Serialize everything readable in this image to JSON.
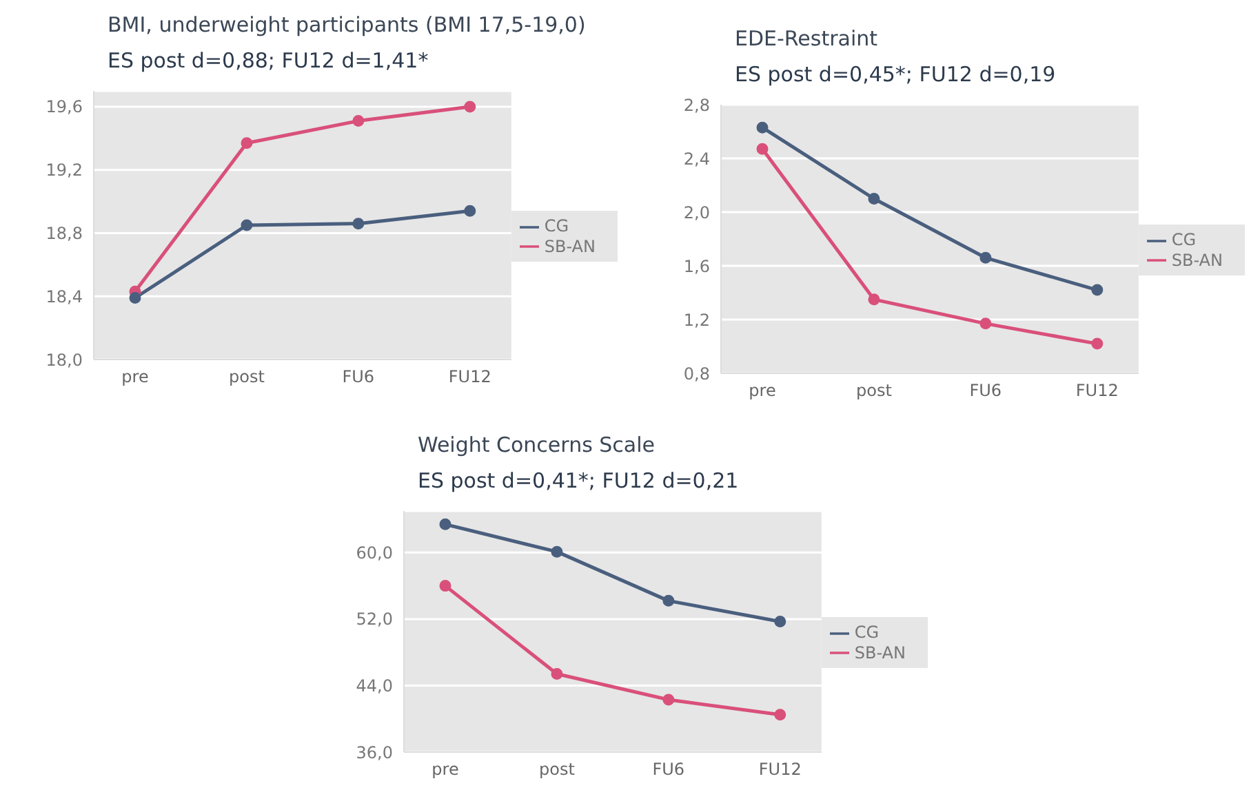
{
  "chart_data": [
    {
      "type": "line",
      "title": "BMI, underweight participants (BMI 17,5-19,0)",
      "subtitle": "ES post d=0,88; FU12 d=1,41*",
      "categories": [
        "pre",
        "post",
        "FU6",
        "FU12"
      ],
      "series": [
        {
          "name": "SB-AN",
          "color": "#d9507a",
          "values": [
            18.43,
            19.37,
            19.51,
            19.6
          ]
        },
        {
          "name": "CG",
          "color": "#4a5f7e",
          "values": [
            18.39,
            18.85,
            18.86,
            18.94
          ]
        }
      ],
      "ylim": [
        18.0,
        19.7
      ],
      "yticks": [
        {
          "value": 18.0,
          "label": "18,0"
        },
        {
          "value": 18.4,
          "label": "18,4"
        },
        {
          "value": 18.8,
          "label": "18,8"
        },
        {
          "value": 19.2,
          "label": "19,2"
        },
        {
          "value": 19.6,
          "label": "19,6"
        }
      ],
      "grid": "y",
      "legend": "right",
      "marker": "circle"
    },
    {
      "type": "line",
      "title": "EDE-Restraint",
      "subtitle": "ES post d=0,45*; FU12 d=0,19",
      "categories": [
        "pre",
        "post",
        "FU6",
        "FU12"
      ],
      "series": [
        {
          "name": "SB-AN",
          "color": "#d9507a",
          "values": [
            2.47,
            1.35,
            1.17,
            1.02
          ]
        },
        {
          "name": "CG",
          "color": "#4a5f7e",
          "values": [
            2.63,
            2.1,
            1.66,
            1.42
          ]
        }
      ],
      "ylim": [
        0.8,
        2.8
      ],
      "yticks": [
        {
          "value": 0.8,
          "label": "0,8"
        },
        {
          "value": 1.2,
          "label": "1,2"
        },
        {
          "value": 1.6,
          "label": "1,6"
        },
        {
          "value": 2.0,
          "label": "2,0"
        },
        {
          "value": 2.4,
          "label": "2,4"
        },
        {
          "value": 2.8,
          "label": "2,8"
        }
      ],
      "grid": "y",
      "legend": "right",
      "marker": "circle"
    },
    {
      "type": "line",
      "title": "Weight Concerns Scale",
      "subtitle": "ES post d=0,41*; FU12 d=0,21",
      "categories": [
        "pre",
        "post",
        "FU6",
        "FU12"
      ],
      "series": [
        {
          "name": "SB-AN",
          "color": "#d9507a",
          "values": [
            56.0,
            45.4,
            42.3,
            40.5
          ]
        },
        {
          "name": "CG",
          "color": "#4a5f7e",
          "values": [
            63.4,
            60.1,
            54.2,
            51.7
          ]
        }
      ],
      "ylim": [
        36,
        65
      ],
      "yticks": [
        {
          "value": 36,
          "label": "36,0"
        },
        {
          "value": 44,
          "label": "44,0"
        },
        {
          "value": 52,
          "label": "52,0"
        },
        {
          "value": 60,
          "label": "60,0"
        }
      ],
      "grid": "y",
      "legend": "right",
      "marker": "circle"
    }
  ]
}
